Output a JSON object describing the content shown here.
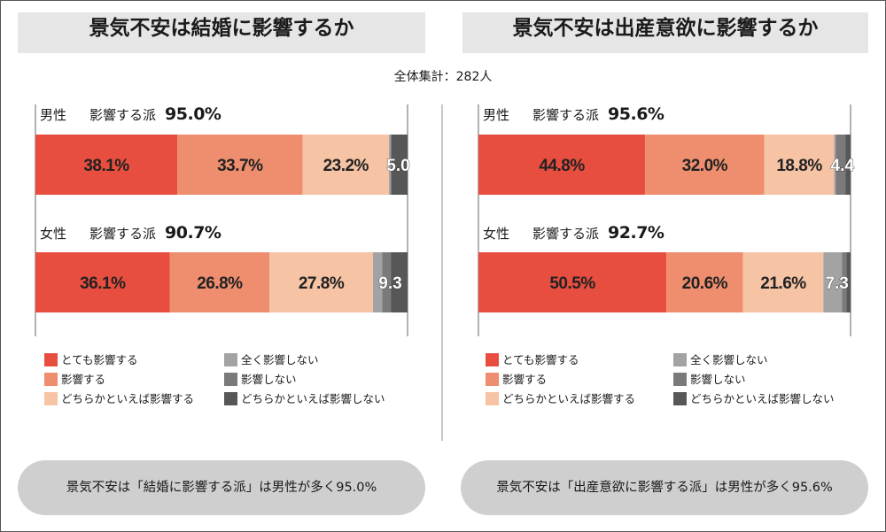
{
  "subtitle": "全体集計：282人",
  "colors": {
    "very_much": "#e84e3f",
    "affects": "#ee8e6e",
    "somewhat": "#f6c3a4",
    "not_at_all": "#a3a3a3",
    "no_affect": "#7a7a7a",
    "rather_not": "#575757"
  },
  "charts": [
    {
      "title": "景気不安は結婚に影響するか",
      "groups": [
        {
          "name": "男性",
          "label_mid": "影響する派",
          "affect_pct": "95.0%"
        },
        {
          "name": "女性",
          "label_mid": "影響する派",
          "affect_pct": "90.7%"
        }
      ],
      "conclusion": "景気不安は「結婚に影響する派」は男性が多く95.0%"
    },
    {
      "title": "景気不安は出産意欲に影響するか",
      "groups": [
        {
          "name": "男性",
          "label_mid": "影響する派",
          "affect_pct": "95.6%"
        },
        {
          "name": "女性",
          "label_mid": "影響する派",
          "affect_pct": "92.7%"
        }
      ],
      "conclusion": "景気不安は「出産意欲に影響する派」は男性が多く95.6%"
    }
  ],
  "legend": [
    {
      "label": "とても影響する",
      "color": "#e84e3f"
    },
    {
      "label": "影響する",
      "color": "#ee8e6e"
    },
    {
      "label": "どちらかといえば影響する",
      "color": "#f6c3a4"
    },
    {
      "label": "全く影響しない",
      "color": "#a3a3a3"
    },
    {
      "label": "影響しない",
      "color": "#7a7a7a"
    },
    {
      "label": "どちらかといえば影響しない",
      "color": "#575757"
    }
  ],
  "chart_data": [
    {
      "type": "bar",
      "orientation": "horizontal-stacked",
      "title": "景気不安は結婚に影響するか",
      "categories": [
        "男性",
        "女性"
      ],
      "series": [
        {
          "name": "とても影響する",
          "values": [
            38.1,
            36.1
          ],
          "labels": [
            "38.1%",
            "36.1%"
          ]
        },
        {
          "name": "影響する",
          "values": [
            33.7,
            26.8
          ],
          "labels": [
            "33.7%",
            "26.8%"
          ]
        },
        {
          "name": "どちらかといえば影響する",
          "values": [
            23.2,
            27.8
          ],
          "labels": [
            "23.2%",
            "27.8%"
          ]
        },
        {
          "name": "全く影響しない",
          "values": [
            0.4,
            2.5
          ],
          "labels": [
            "",
            ""
          ]
        },
        {
          "name": "影響しない",
          "values": [
            0.3,
            2.3
          ],
          "labels": [
            "",
            ""
          ]
        },
        {
          "name": "どちらかといえば影響しない",
          "values": [
            4.3,
            4.5
          ],
          "labels": [
            "",
            ""
          ]
        }
      ],
      "negative_labels": [
        "5.0",
        "9.3"
      ],
      "xlim": [
        0,
        100
      ]
    },
    {
      "type": "bar",
      "orientation": "horizontal-stacked",
      "title": "景気不安は出産意欲に影響するか",
      "categories": [
        "男性",
        "女性"
      ],
      "series": [
        {
          "name": "とても影響する",
          "values": [
            44.8,
            50.5
          ],
          "labels": [
            "44.8%",
            "50.5%"
          ]
        },
        {
          "name": "影響する",
          "values": [
            32.0,
            20.6
          ],
          "labels": [
            "32.0%",
            "20.6%"
          ]
        },
        {
          "name": "どちらかといえば影響する",
          "values": [
            18.8,
            21.6
          ],
          "labels": [
            "18.8%",
            "21.6%"
          ]
        },
        {
          "name": "全く影響しない",
          "values": [
            0.4,
            5.0
          ],
          "labels": [
            "",
            ""
          ]
        },
        {
          "name": "影響しない",
          "values": [
            2.6,
            1.2
          ],
          "labels": [
            "",
            ""
          ]
        },
        {
          "name": "どちらかといえば影響しない",
          "values": [
            1.4,
            1.1
          ],
          "labels": [
            "",
            ""
          ]
        }
      ],
      "negative_labels": [
        "4.4",
        "7.3"
      ],
      "xlim": [
        0,
        100
      ]
    }
  ]
}
